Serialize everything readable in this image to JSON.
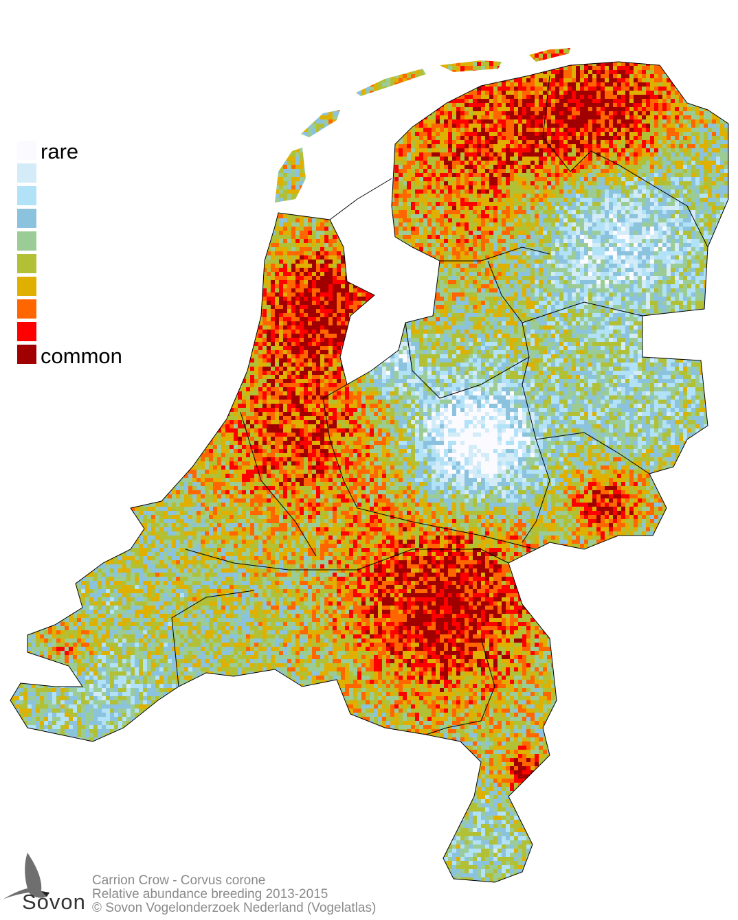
{
  "legend": {
    "top_label": "rare",
    "bottom_label": "common",
    "colors": [
      "#fafaff",
      "#d4ebf8",
      "#b1e2f8",
      "#8bc2de",
      "#9ccc96",
      "#b1c034",
      "#e0b000",
      "#ff6600",
      "#ff0000",
      "#a00000"
    ]
  },
  "caption": {
    "line1": "Carrion Crow - Corvus corone",
    "line2": "Relative abundance breeding 2013-2015",
    "line3": "© Sovon Vogelonderzoek Nederland (Vogelatlas)"
  },
  "logo": {
    "text": "Sovon",
    "icon": "swallow-icon"
  },
  "colors": {
    "caption": "#8a8a8a",
    "border": "#000000",
    "water": "#ffffff"
  }
}
